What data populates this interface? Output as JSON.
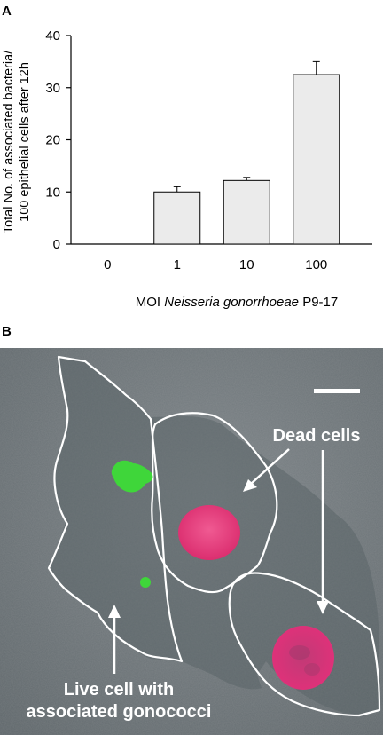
{
  "panels": {
    "a": {
      "label": "A"
    },
    "b": {
      "label": "B"
    }
  },
  "chart_data": {
    "type": "bar",
    "categories": [
      "0",
      "1",
      "10",
      "100"
    ],
    "values": [
      0,
      10,
      12.2,
      32.5
    ],
    "errors": [
      0,
      1,
      0.6,
      2.5
    ],
    "title": "",
    "xlabel": {
      "prefix": "MOI ",
      "italic": "Neisseria gonorrhoeae",
      "suffix": " P9-17"
    },
    "ylabel": [
      "Total No. of associated bacteria/",
      "100 epithelial cells after 12h"
    ],
    "ylim": [
      0,
      40
    ],
    "yticks": [
      0,
      10,
      20,
      30,
      40
    ],
    "bar_color": "#ebebeb",
    "bar_edge_color": "#000000",
    "grid": false
  },
  "micrograph": {
    "annotations": {
      "dead_cells": "Dead cells",
      "live_cell_line1": "Live cell with",
      "live_cell_line2": "associated gonococci"
    },
    "colors": {
      "background": "#6a7276",
      "cell_outline": "#ffffff",
      "nucleus": "#e8307a",
      "bacteria": "#3fd63a"
    }
  }
}
